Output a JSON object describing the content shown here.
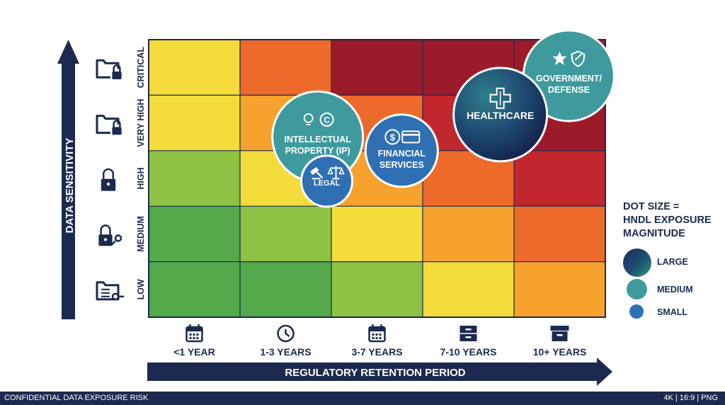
{
  "colors": {
    "navy": "#1b2a4e",
    "heat": [
      "#53a84a",
      "#8ec245",
      "#f4dc3a",
      "#f6a22c",
      "#ee6a2a",
      "#c2272e",
      "#9c1b2b"
    ],
    "bubble_large": "#1e3a5f",
    "bubble_medium": "#3e9a9c",
    "bubble_small": "#2f6fb3"
  },
  "chart_data": {
    "type": "heatmap",
    "title": "",
    "xlabel": "REGULATORY RETENTION PERIOD",
    "ylabel": "DATA SENSITIVITY",
    "x_categories": [
      "<1 YEAR",
      "1-3 YEARS",
      "3-7 YEARS",
      "7-10 YEARS",
      "10+ YEARS"
    ],
    "y_categories": [
      "LOW",
      "MEDIUM",
      "HIGH",
      "VERY HIGH",
      "CRITICAL"
    ],
    "x_icons": [
      "calendar-icon",
      "clock-icon",
      "calendar-icon",
      "file-cabinet-icon",
      "archive-box-icon"
    ],
    "y_icons": [
      "folder-key-icon",
      "lock-key-icon",
      "padlock-icon",
      "folder-lock-icon",
      "folder-lock-icon"
    ],
    "cell_levels": [
      [
        0,
        0,
        1,
        2,
        3
      ],
      [
        0,
        1,
        2,
        3,
        4
      ],
      [
        1,
        2,
        3,
        4,
        5
      ],
      [
        2,
        3,
        4,
        5,
        6
      ],
      [
        2,
        4,
        6,
        6,
        6
      ]
    ],
    "bubbles": [
      {
        "label": "GOVERNMENT/ DEFENSE",
        "lines": [
          "GOVERNMENT/",
          "DEFENSE"
        ],
        "x": 4.6,
        "y": 4.35,
        "size": "medium",
        "icons": [
          "star-icon",
          "shield-icon"
        ]
      },
      {
        "label": "HEALTHCARE",
        "lines": [
          "HEALTHCARE"
        ],
        "x": 3.85,
        "y": 3.65,
        "size": "large",
        "icons": [
          "medical-cross-icon"
        ]
      },
      {
        "label": "FINANCIAL SERVICES",
        "lines": [
          "FINANCIAL",
          "SERVICES"
        ],
        "x": 2.77,
        "y": 3.0,
        "size": "small",
        "icons": [
          "dollar-exchange-icon",
          "credit-card-icon"
        ]
      },
      {
        "label": "INTELLECTUAL PROPERTY (IP)",
        "lines": [
          "INTELLECTUAL",
          "PROPERTY (IP)"
        ],
        "x": 1.85,
        "y": 3.25,
        "size": "medium",
        "icons": [
          "lightbulb-icon",
          "copyright-icon"
        ]
      },
      {
        "label": "LEGAL",
        "lines": [
          "LEGAL"
        ],
        "x": 1.95,
        "y": 2.45,
        "size": "small",
        "icons": [
          "gavel-icon",
          "scales-icon"
        ]
      }
    ],
    "legend": {
      "title_lines": [
        "DOT SIZE =",
        "HNDL EXPOSURE",
        "MAGNITUDE"
      ],
      "items": [
        {
          "label": "LARGE",
          "size": "large"
        },
        {
          "label": "MEDIUM",
          "size": "medium"
        },
        {
          "label": "SMALL",
          "size": "small"
        }
      ],
      "placement": "right"
    },
    "grid": true
  },
  "footer": {
    "left": "CONFIDENTIAL DATA EXPOSURE RISK",
    "right": "4K | 16:9 | PNG"
  }
}
